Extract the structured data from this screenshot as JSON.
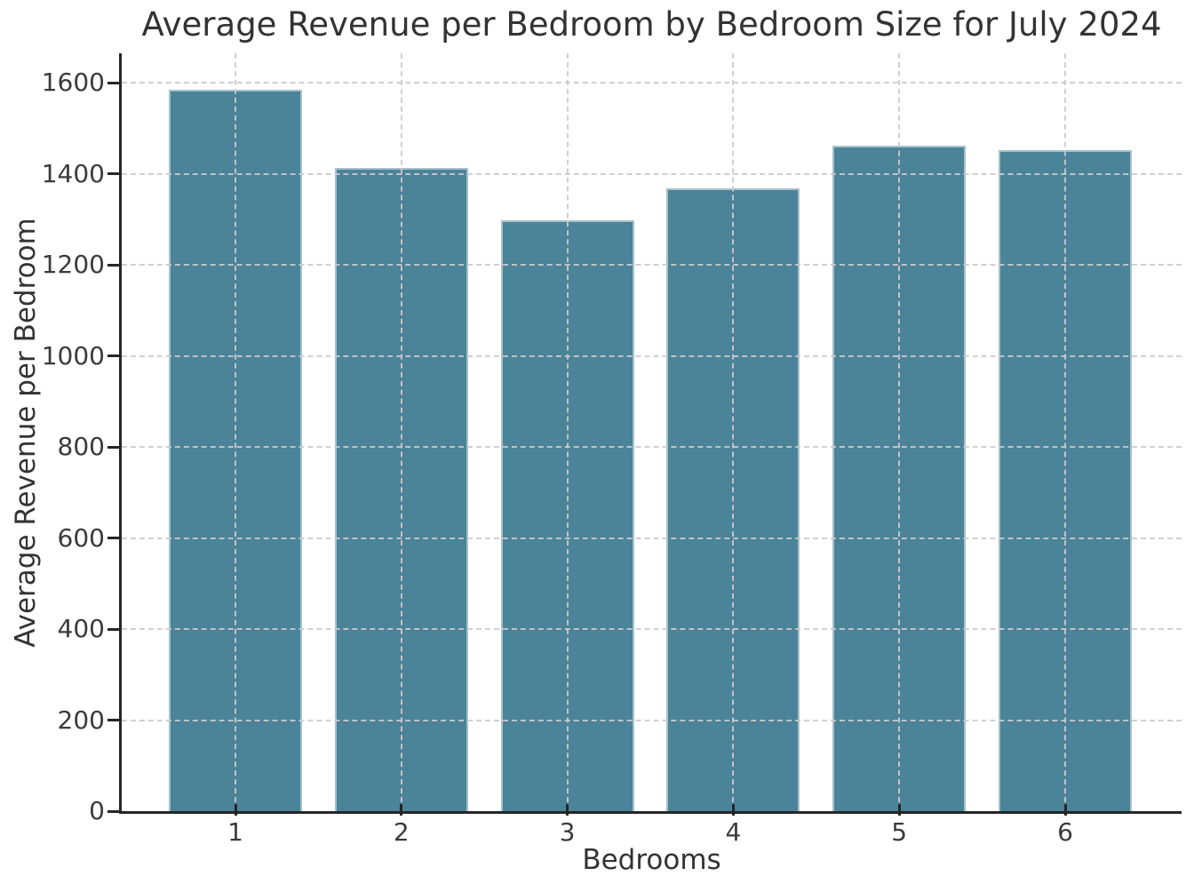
{
  "chart_data": {
    "type": "bar",
    "title": "Average Revenue per Bedroom by Bedroom Size for July 2024",
    "xlabel": "Bedrooms",
    "ylabel": "Average Revenue per Bedroom",
    "categories": [
      "1",
      "2",
      "3",
      "4",
      "5",
      "6"
    ],
    "values": [
      1585,
      1413,
      1298,
      1368,
      1462,
      1452
    ],
    "ylim": [
      0,
      1664
    ],
    "yticks": [
      0,
      200,
      400,
      600,
      800,
      1000,
      1200,
      1400,
      1600
    ],
    "grid": "dashed, drawn above bars, horizontal and vertical",
    "legend_position": "none",
    "colors": {
      "bar_fill": "#4b8398",
      "bar_edge": "#a6c2cc",
      "grid_line": "#cccccc",
      "spine": "#262626",
      "text": "#333333",
      "tick_text": "#3b3b3b",
      "background": "#ffffff"
    }
  }
}
